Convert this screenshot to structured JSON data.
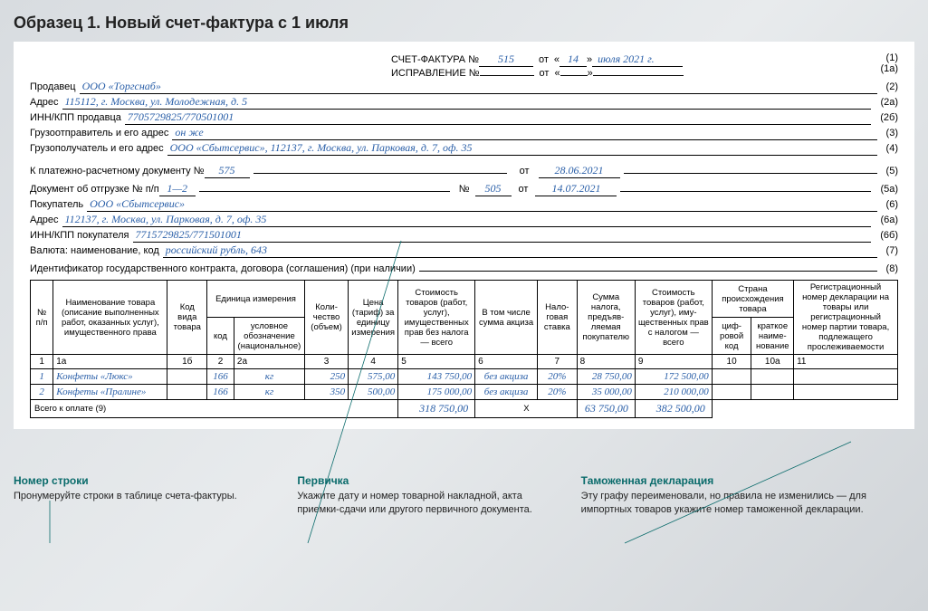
{
  "title": "Образец 1. Новый счет-фактура с 1 июля",
  "hdr": {
    "invoice_label": "СЧЕТ-ФАКТУРА  №",
    "invoice_no": "515",
    "ot": "от",
    "quote_l": "«",
    "quote_r": "»",
    "day": "14",
    "month_year": "июля 2021 г.",
    "ref1": "(1)",
    "corr_label": "ИСПРАВЛЕНИЕ  №",
    "ref1a": "(1а)",
    "seller_label": "Продавец",
    "seller": "ООО «Торгснаб»",
    "ref2": "(2)",
    "addr_label": "Адрес",
    "seller_addr": "115112, г. Москва, ул. Молодежная, д. 5",
    "ref2a": "(2а)",
    "inn_label": "ИНН/КПП продавца",
    "seller_inn": "7705729825/770501001",
    "ref2b": "(2б)",
    "shipper_label": "Грузоотправитель и его адрес",
    "shipper": "он же",
    "ref3": "(3)",
    "consignee_label": "Грузополучатель и его адрес",
    "consignee": "ООО «Сбытсервис», 112137, г. Москва, ул. Парковая, д. 7, оф. 35",
    "ref4": "(4)",
    "paydoc_label": "К платежно-расчетному документу №",
    "paydoc_no": "575",
    "paydoc_date": "28.06.2021",
    "ref5": "(5)",
    "shipdoc_label": "Документ об отгрузке № п/п",
    "shipdoc_pp": "1—2",
    "no_label": "№",
    "shipdoc_no": "505",
    "shipdoc_date": "14.07.2021",
    "ref5a": "(5а)",
    "buyer_label": "Покупатель",
    "buyer": "ООО «Сбытсервис»",
    "ref6": "(6)",
    "buyer_addr": "112137, г. Москва, ул. Парковая, д. 7, оф. 35",
    "ref6a": "(6а)",
    "buyer_inn_label": "ИНН/КПП покупателя",
    "buyer_inn": "7715729825/771501001",
    "ref6b": "(6б)",
    "currency_label": "Валюта: наименование, код",
    "currency": "российский рубль, 643",
    "ref7": "(7)",
    "contract_label": "Идентификатор государственного контракта, договора (соглашения) (при наличии)",
    "ref8": "(8)"
  },
  "cols": {
    "c1": "№\nп/п",
    "c1a": "Наименование товара (описание выполнен­ных работ, оказан­ных услуг), имуще­ственного права",
    "c1b": "Код вида товара",
    "c2g": "Единица измерения",
    "c2": "код",
    "c2a": "условное обозначение (националь­ное)",
    "c3": "Коли­чество (объем)",
    "c4": "Цена (тариф) за еди­ницу изме­рения",
    "c5": "Стоимость товаров (работ, услуг), имуществен­ных прав без налога — всего",
    "c6": "В том числе сумма акциза",
    "c7": "Нало­говая став­ка",
    "c8": "Сумма налога, предъяв­ляемая покупа­телю",
    "c9": "Стоимость товаров (работ, услуг), иму­щественных прав с нало­гом — всего",
    "c10g": "Страна происхождения товара",
    "c10": "циф­ровой код",
    "c10a": "краткое наиме­нова­ние",
    "c11": "Регистрацион­ный номер декла­рации на товары или регистрацион­ный номер партии товара, подлежащего прослеживаемости"
  },
  "numrow": {
    "n1": "1",
    "n1a": "1а",
    "n1b": "1б",
    "n2": "2",
    "n2a": "2а",
    "n3": "3",
    "n4": "4",
    "n5": "5",
    "n6": "6",
    "n7": "7",
    "n8": "8",
    "n9": "9",
    "n10": "10",
    "n10a": "10а",
    "n11": "11"
  },
  "rows": [
    {
      "n": "1",
      "name": "Конфеты «Люкс»",
      "kind": "",
      "u": "166",
      "un": "кг",
      "qty": "250",
      "price": "575,00",
      "sum": "143 750,00",
      "excise": "без акциза",
      "rate": "20%",
      "tax": "28 750,00",
      "total": "172 500,00",
      "cc": "",
      "cn": "",
      "decl": ""
    },
    {
      "n": "2",
      "name": "Конфеты «Пралине»",
      "kind": "",
      "u": "166",
      "un": "кг",
      "qty": "350",
      "price": "500,00",
      "sum": "175 000,00",
      "excise": "без акциза",
      "rate": "20%",
      "tax": "35 000,00",
      "total": "210 000,00",
      "cc": "",
      "cn": "",
      "decl": ""
    }
  ],
  "totals": {
    "label": "Всего к оплате (9)",
    "sum": "318 750,00",
    "x": "Х",
    "tax": "63 750,00",
    "total": "382 500,00"
  },
  "ann": [
    {
      "t": "Номер строки",
      "x": "Пронумеруйте строки в таблице счета-фактуры."
    },
    {
      "t": "Первичка",
      "x": "Укажите дату и номер товарной накладной, акта приемки-сдачи или другого первичного документа."
    },
    {
      "t": "Таможенная декларация",
      "x": "Эту графу переименовали, но правила не изменились — для импортных товаров укажите номер таможенной декларации."
    }
  ]
}
